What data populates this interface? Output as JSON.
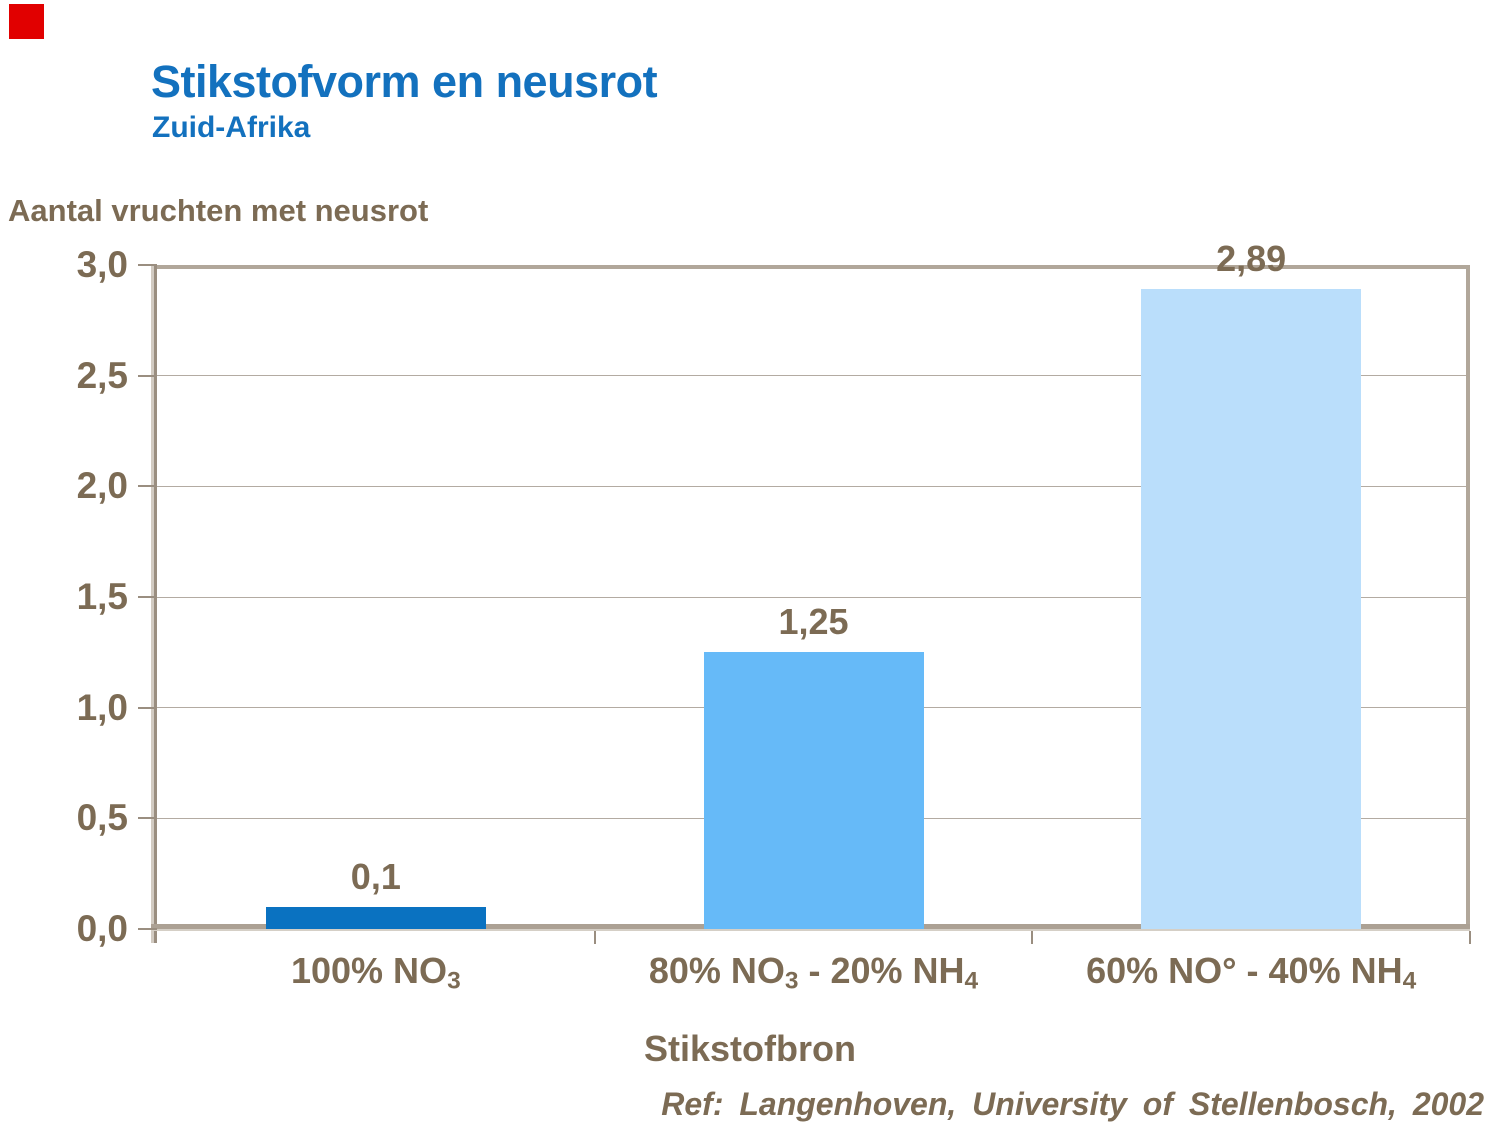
{
  "colors": {
    "title": "#1371be",
    "text": "#7c6b54",
    "axis": "#b1a79a",
    "axis_dark": "#9a8e80",
    "axis_light": "#d5cfc6",
    "grid": "#b3aba2",
    "marker_red": "#e10000",
    "background": "#ffffff"
  },
  "footer": {
    "reference": "Ref: Langenhoven, University of Stellenbosch, 2002"
  },
  "chart_data": {
    "type": "bar",
    "title": "Stikstofvorm en neusrot",
    "subtitle": "Zuid-Afrika",
    "ylabel": "Aantal vruchten met neusrot",
    "xlabel": "Stikstofbron",
    "ylim": [
      0,
      3.0
    ],
    "ytick_step": 0.5,
    "grid": true,
    "legend": false,
    "yticks": [
      {
        "value": 3.0,
        "label": "3,0"
      },
      {
        "value": 2.5,
        "label": "2,5"
      },
      {
        "value": 2.0,
        "label": "2,0"
      },
      {
        "value": 1.5,
        "label": "1,5"
      },
      {
        "value": 1.0,
        "label": "1,0"
      },
      {
        "value": 0.5,
        "label": "0,5"
      },
      {
        "value": 0.0,
        "label": "0,0"
      }
    ],
    "categories": [
      "100% NO₃",
      "80% NO₃ - 20% NH₄",
      "60% NO° - 40% NH₄"
    ],
    "category_parts": [
      [
        {
          "text": "100% NO"
        },
        {
          "sub": "3"
        }
      ],
      [
        {
          "text": "80% NO"
        },
        {
          "sub": "3"
        },
        {
          "text": " - 20% NH"
        },
        {
          "sub": "4"
        }
      ],
      [
        {
          "text": "60% NO° - 40% NH"
        },
        {
          "sub": "4"
        }
      ]
    ],
    "values": [
      0.1,
      1.25,
      2.89
    ],
    "value_labels": [
      "0,1",
      "1,25",
      "2,89"
    ],
    "bar_colors": [
      "#0a72c1",
      "#66baf8",
      "#badefb"
    ]
  }
}
